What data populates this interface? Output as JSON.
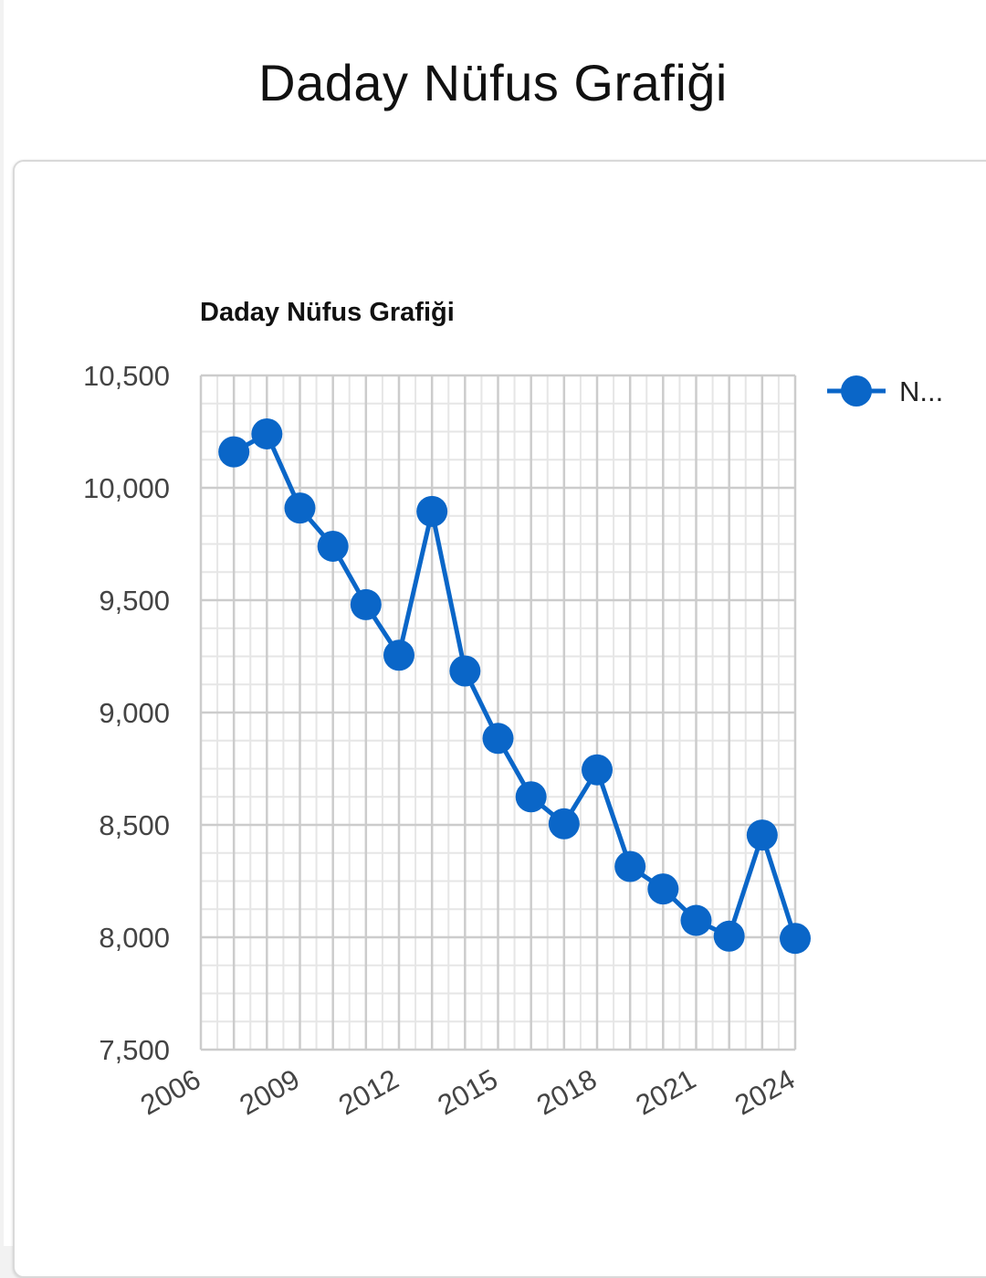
{
  "page": {
    "title": "Daday Nüfus Grafiği"
  },
  "chart_data": {
    "type": "line",
    "title": "Daday Nüfus Grafiği",
    "xlabel": "",
    "ylabel": "",
    "x": [
      2007,
      2008,
      2009,
      2010,
      2011,
      2012,
      2013,
      2014,
      2015,
      2016,
      2017,
      2018,
      2019,
      2020,
      2021,
      2022,
      2023,
      2024
    ],
    "series": [
      {
        "name": "N...",
        "values": [
          10160,
          10240,
          9910,
          9740,
          9480,
          9255,
          9895,
          9185,
          8885,
          8625,
          8505,
          8745,
          8315,
          8215,
          8075,
          8005,
          8455,
          7995
        ]
      }
    ],
    "xlim": [
      2006,
      2024
    ],
    "ylim": [
      7500,
      10500
    ],
    "x_ticks": [
      2006,
      2009,
      2012,
      2015,
      2018,
      2021,
      2024
    ],
    "x_tick_labels": [
      "2006",
      "2009",
      "2012",
      "2015",
      "2018",
      "2021",
      "2024"
    ],
    "y_ticks": [
      7500,
      8000,
      8500,
      9000,
      9500,
      10000,
      10500
    ],
    "y_tick_labels": [
      "7,500",
      "8,000",
      "8,500",
      "9,000",
      "9,500",
      "10,000",
      "10,500"
    ],
    "legend": "top-right",
    "grid": true,
    "colors": {
      "series": "#0a66c8",
      "major_grid": "#cccccc",
      "minor_grid": "#e6e6e6",
      "axis_text": "#444444",
      "title_text": "#111111"
    }
  }
}
